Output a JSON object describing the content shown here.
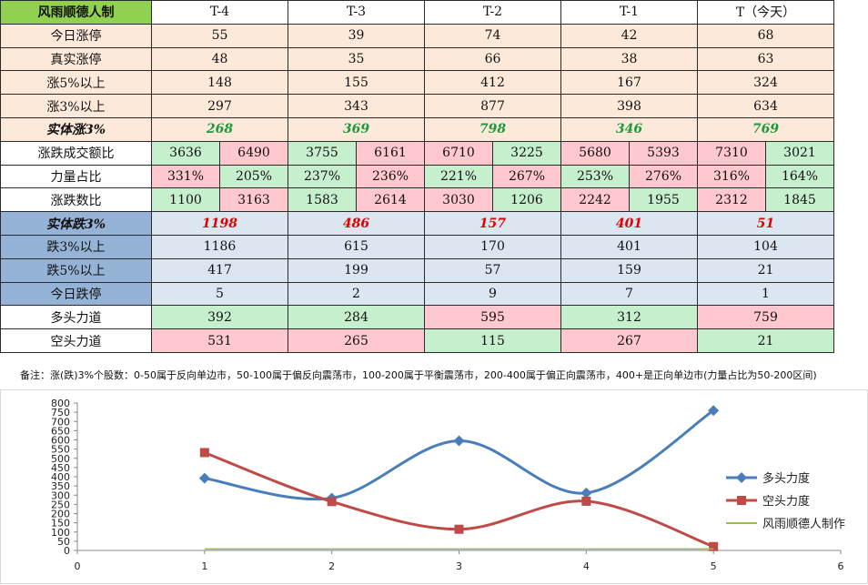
{
  "table": {
    "corner": "风雨顺德人制",
    "columns": [
      "T-4",
      "T-3",
      "T-2",
      "T-1",
      "T（今天）"
    ],
    "rows_top": [
      {
        "label": "今日涨停",
        "values": [
          "55",
          "39",
          "74",
          "42",
          "68"
        ]
      },
      {
        "label": "真实涨停",
        "values": [
          "48",
          "35",
          "66",
          "38",
          "63"
        ]
      },
      {
        "label": "涨5%以上",
        "values": [
          "148",
          "155",
          "412",
          "167",
          "324"
        ]
      },
      {
        "label": "涨3%以上",
        "values": [
          "297",
          "343",
          "877",
          "398",
          "634"
        ]
      }
    ],
    "entity_up": {
      "label": "实体涨3%",
      "values": [
        "268",
        "369",
        "798",
        "346",
        "769"
      ]
    },
    "pair_rows": [
      {
        "label": "涨跌成交额比",
        "pairs": [
          [
            "3636",
            "6490"
          ],
          [
            "3755",
            "6161"
          ],
          [
            "6710",
            "3225"
          ],
          [
            "5680",
            "5393"
          ],
          [
            "7310",
            "3021"
          ]
        ],
        "colors": [
          [
            "g",
            "r"
          ],
          [
            "g",
            "r"
          ],
          [
            "r",
            "g"
          ],
          [
            "r",
            "r"
          ],
          [
            "r",
            "g"
          ]
        ]
      },
      {
        "label": "力量占比",
        "pairs": [
          [
            "331%",
            "205%"
          ],
          [
            "237%",
            "236%"
          ],
          [
            "221%",
            "267%"
          ],
          [
            "253%",
            "276%"
          ],
          [
            "316%",
            "164%"
          ]
        ],
        "colors": [
          [
            "r",
            "g"
          ],
          [
            "g",
            "r"
          ],
          [
            "g",
            "r"
          ],
          [
            "g",
            "r"
          ],
          [
            "r",
            "g"
          ]
        ]
      },
      {
        "label": "涨跌数比",
        "pairs": [
          [
            "1100",
            "3163"
          ],
          [
            "1583",
            "2614"
          ],
          [
            "3030",
            "1206"
          ],
          [
            "2242",
            "1955"
          ],
          [
            "2312",
            "1845"
          ]
        ],
        "colors": [
          [
            "g",
            "r"
          ],
          [
            "g",
            "r"
          ],
          [
            "r",
            "g"
          ],
          [
            "r",
            "g"
          ],
          [
            "r",
            "g"
          ]
        ]
      }
    ],
    "entity_down": {
      "label": "实体跌3%",
      "values": [
        "1198",
        "486",
        "157",
        "401",
        "51"
      ]
    },
    "rows_down": [
      {
        "label": "跌3%以上",
        "values": [
          "1186",
          "615",
          "170",
          "401",
          "104"
        ]
      },
      {
        "label": "跌5%以上",
        "values": [
          "417",
          "199",
          "57",
          "159",
          "21"
        ]
      },
      {
        "label": "今日跌停",
        "values": [
          "5",
          "2",
          "9",
          "7",
          "1"
        ]
      }
    ],
    "force_rows": [
      {
        "label": "多头力道",
        "values": [
          "392",
          "284",
          "595",
          "312",
          "759"
        ],
        "colors": [
          "g",
          "g",
          "r",
          "g",
          "r"
        ]
      },
      {
        "label": "空头力道",
        "values": [
          "531",
          "265",
          "115",
          "267",
          "21"
        ],
        "colors": [
          "r",
          "r",
          "g",
          "r",
          "g"
        ]
      }
    ]
  },
  "note": "备注：涨(跌)3%个股数：0-50属于反向单边市，50-100属于偏反向震荡市，100-200属于平衡震荡市，200-400属于偏正向震荡市，400+是正向单边市(力量占比为50-200区间)",
  "chart_data": {
    "type": "scatter",
    "x_ticks": [
      "0",
      "1",
      "2",
      "3",
      "4",
      "5",
      "6"
    ],
    "y_ticks": [
      "0",
      "50",
      "100",
      "150",
      "200",
      "250",
      "300",
      "350",
      "400",
      "450",
      "500",
      "550",
      "600",
      "650",
      "700",
      "750",
      "800"
    ],
    "xlim": [
      0,
      6
    ],
    "ylim": [
      0,
      800
    ],
    "series": [
      {
        "name": "多头力度",
        "color": "#4a7ebb",
        "marker": "diamond",
        "x": [
          1,
          2,
          3,
          4,
          5
        ],
        "y": [
          392,
          284,
          595,
          312,
          759
        ]
      },
      {
        "name": "空头力度",
        "color": "#be4b48",
        "marker": "square",
        "x": [
          1,
          2,
          3,
          4,
          5
        ],
        "y": [
          531,
          265,
          115,
          267,
          21
        ]
      },
      {
        "name": "风雨顺德人制作",
        "color": "#9bbb59",
        "marker": "none",
        "x": [
          1,
          2,
          3,
          4,
          5
        ],
        "y": [
          8,
          8,
          8,
          8,
          8
        ]
      }
    ],
    "legend": "right"
  }
}
